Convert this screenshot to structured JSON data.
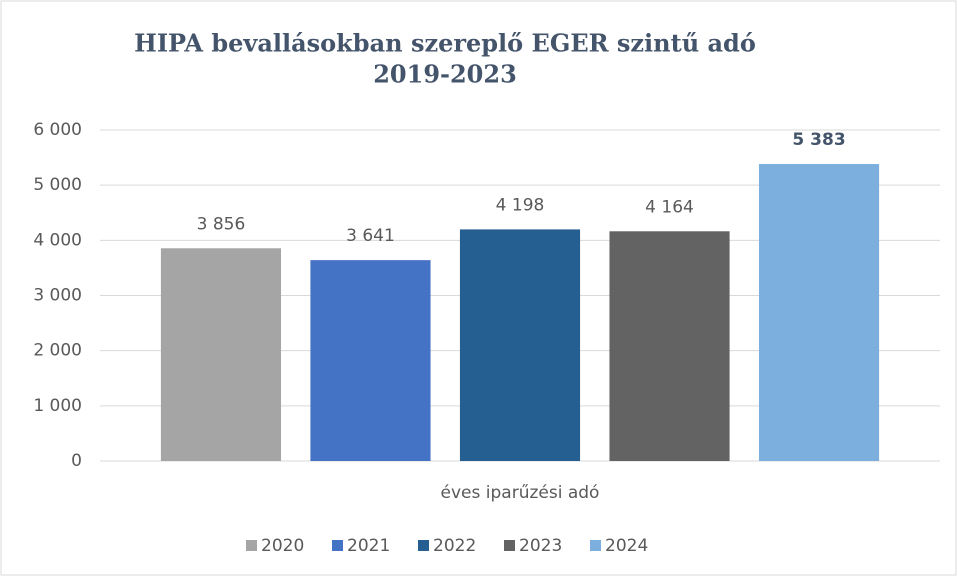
{
  "chart_data": {
    "type": "bar",
    "title": [
      "HIPA bevallásokban szereplő EGER szintű adó",
      "2019-2023"
    ],
    "categories": [
      "éves iparűzési adó"
    ],
    "series": [
      {
        "name": "2020",
        "color": "#a5a5a5",
        "values": [
          3856
        ],
        "value_labels": [
          "3 856"
        ]
      },
      {
        "name": "2021",
        "color": "#4472c4",
        "values": [
          3641
        ],
        "value_labels": [
          "3 641"
        ]
      },
      {
        "name": "2022",
        "color": "#255e91",
        "values": [
          4198
        ],
        "value_labels": [
          "4 198"
        ]
      },
      {
        "name": "2023",
        "color": "#636363",
        "values": [
          4164
        ],
        "value_labels": [
          "4 164"
        ]
      },
      {
        "name": "2024",
        "color": "#7cafdd",
        "values": [
          5383
        ],
        "value_labels": [
          "5 383"
        ]
      }
    ],
    "ylim": [
      0,
      6000
    ],
    "yticks": [
      0,
      {
        "value": 1000,
        "label": "1 000"
      },
      {
        "value": 2000,
        "label": "2 000"
      },
      {
        "value": 3000,
        "label": "3 000"
      },
      {
        "value": 4000,
        "label": "4 000"
      },
      {
        "value": 5000,
        "label": "5 000"
      },
      {
        "value": 6000,
        "label": "6 000"
      }
    ],
    "grid": true,
    "legend": "bottom"
  }
}
